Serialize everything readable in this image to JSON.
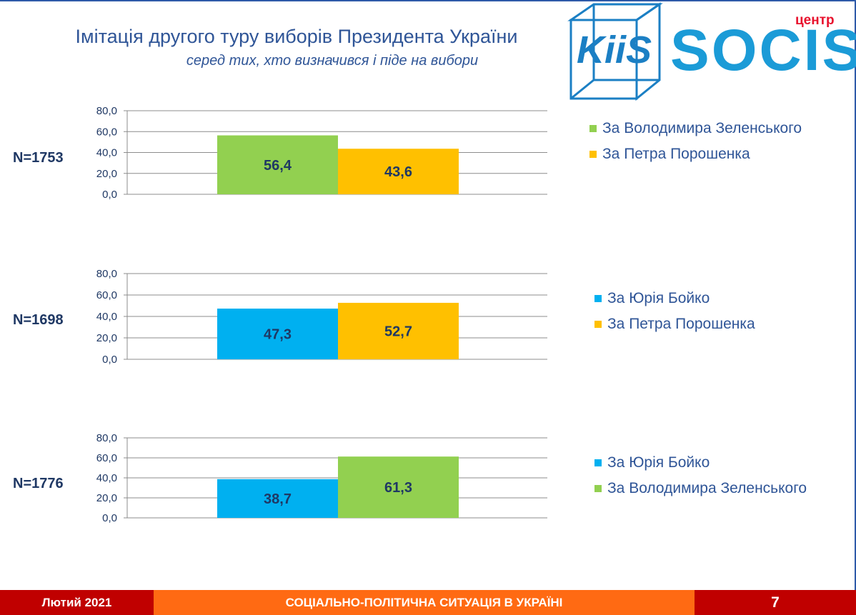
{
  "header": {
    "title": "Імітація другого туру виборів Президента України",
    "subtitle": "серед тих, хто визначився і піде на вибори"
  },
  "logos": {
    "kiis_text": "KiiS",
    "socis_prefix": "центр",
    "socis_word": "SOCIS"
  },
  "colors": {
    "zelensky": "#92d050",
    "poroshenko": "#ffc000",
    "boyko": "#00b0f0",
    "text_blue": "#2f5597",
    "value_text": "#1f3864"
  },
  "chart_data": [
    {
      "type": "bar",
      "n_label": "N=1753",
      "ylim": [
        0,
        80
      ],
      "yticks": [
        "0,0",
        "20,0",
        "40,0",
        "60,0",
        "80,0"
      ],
      "series": [
        {
          "name": "За Володимира Зеленського",
          "value": 56.4,
          "label": "56,4",
          "color": "#92d050"
        },
        {
          "name": "За Петра Порошенка",
          "value": 43.6,
          "label": "43,6",
          "color": "#ffc000"
        }
      ],
      "grid": true,
      "legend": "right"
    },
    {
      "type": "bar",
      "n_label": "N=1698",
      "ylim": [
        0,
        80
      ],
      "yticks": [
        "0,0",
        "20,0",
        "40,0",
        "60,0",
        "80,0"
      ],
      "series": [
        {
          "name": "За Юрія Бойко",
          "value": 47.3,
          "label": "47,3",
          "color": "#00b0f0"
        },
        {
          "name": "За Петра Порошенка",
          "value": 52.7,
          "label": "52,7",
          "color": "#ffc000"
        }
      ],
      "grid": true,
      "legend": "right"
    },
    {
      "type": "bar",
      "n_label": "N=1776",
      "ylim": [
        0,
        80
      ],
      "yticks": [
        "0,0",
        "20,0",
        "40,0",
        "60,0",
        "80,0"
      ],
      "series": [
        {
          "name": "За Юрія Бойко",
          "value": 38.7,
          "label": "38,7",
          "color": "#00b0f0"
        },
        {
          "name": "За Володимира Зеленського",
          "value": 61.3,
          "label": "61,3",
          "color": "#92d050"
        }
      ],
      "grid": true,
      "legend": "right"
    }
  ],
  "footer": {
    "date": "Лютий 2021",
    "topic": "СОЦІАЛЬНО-ПОЛІТИЧНА СИТУАЦІЯ В УКРАЇНІ",
    "page": "7"
  }
}
